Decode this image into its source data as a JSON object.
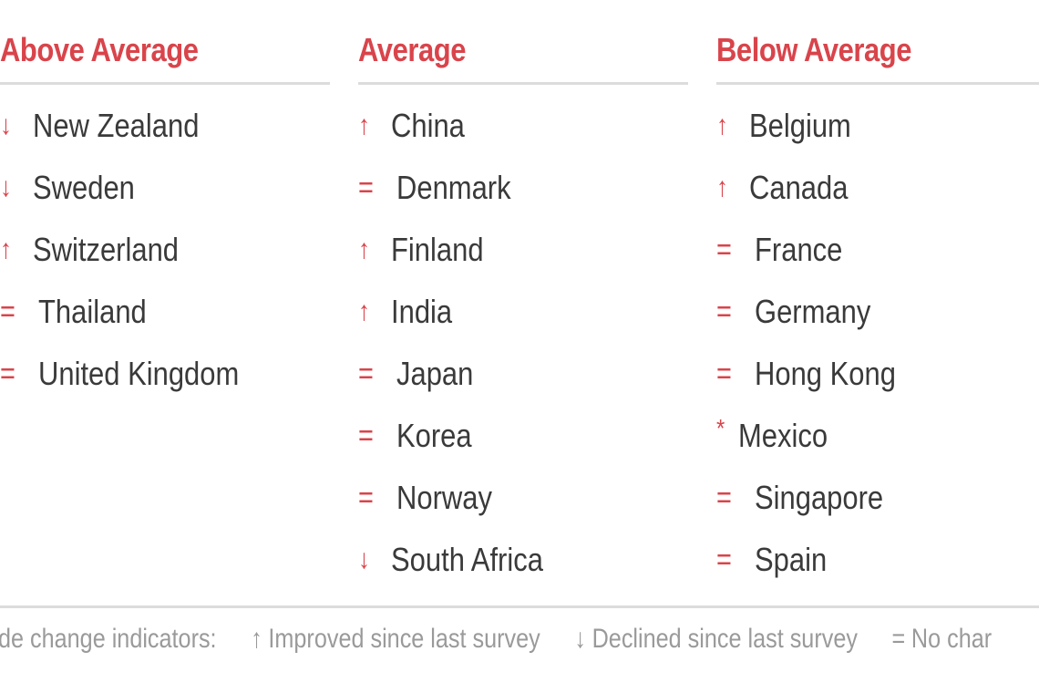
{
  "columns": [
    {
      "title": "Above Average",
      "items": [
        {
          "indicator": "↓",
          "kind": "down",
          "name": "New Zealand"
        },
        {
          "indicator": "↓",
          "kind": "down",
          "name": "Sweden"
        },
        {
          "indicator": "↑",
          "kind": "up",
          "name": "Switzerland"
        },
        {
          "indicator": "=",
          "kind": "same",
          "name": "Thailand"
        },
        {
          "indicator": "=",
          "kind": "same",
          "name": "United Kingdom"
        }
      ]
    },
    {
      "title": "Average",
      "items": [
        {
          "indicator": "↑",
          "kind": "up",
          "name": "China"
        },
        {
          "indicator": "=",
          "kind": "same",
          "name": "Denmark"
        },
        {
          "indicator": "↑",
          "kind": "up",
          "name": "Finland"
        },
        {
          "indicator": "↑",
          "kind": "up",
          "name": "India"
        },
        {
          "indicator": "=",
          "kind": "same",
          "name": "Japan"
        },
        {
          "indicator": "=",
          "kind": "same",
          "name": "Korea"
        },
        {
          "indicator": "=",
          "kind": "same",
          "name": "Norway"
        },
        {
          "indicator": "↓",
          "kind": "down",
          "name": "South Africa"
        }
      ]
    },
    {
      "title": "Below Average",
      "items": [
        {
          "indicator": "↑",
          "kind": "up",
          "name": "Belgium"
        },
        {
          "indicator": "↑",
          "kind": "up",
          "name": "Canada"
        },
        {
          "indicator": "=",
          "kind": "same",
          "name": "France"
        },
        {
          "indicator": "=",
          "kind": "same",
          "name": "Germany"
        },
        {
          "indicator": "=",
          "kind": "same",
          "name": "Hong Kong"
        },
        {
          "indicator": "*",
          "kind": "new",
          "name": "Mexico"
        },
        {
          "indicator": "=",
          "kind": "same",
          "name": "Singapore"
        },
        {
          "indicator": "=",
          "kind": "same",
          "name": "Spain"
        }
      ]
    }
  ],
  "footer": {
    "lead": "de change indicators:",
    "legend": [
      {
        "glyph": "↑",
        "text": "Improved since last survey"
      },
      {
        "glyph": "↓",
        "text": "Declined since last survey"
      },
      {
        "glyph": "=",
        "text": "No char"
      }
    ]
  },
  "colors": {
    "accent": "#d9444b",
    "text": "#3a3a3a",
    "muted": "#9a9a9a",
    "rule": "#dcdcdc"
  }
}
